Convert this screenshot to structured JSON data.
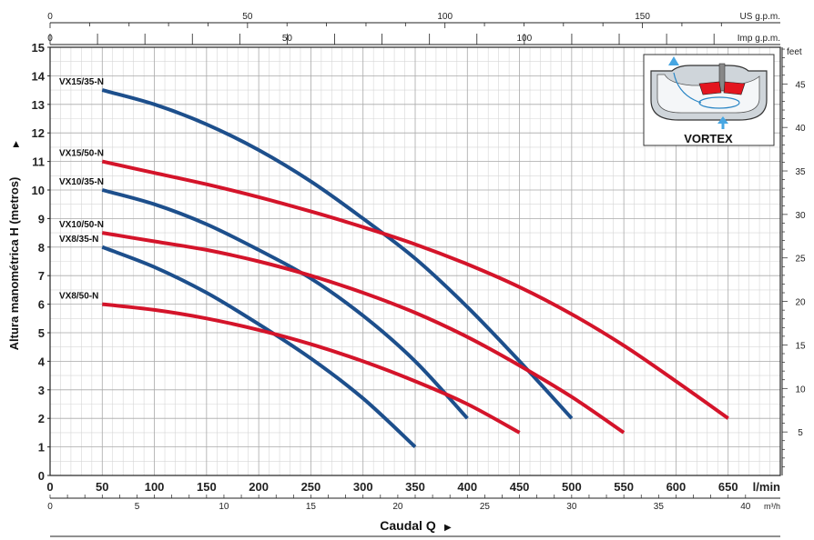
{
  "chart_data": {
    "type": "line",
    "x_unit": "l/min",
    "ylabel": "Altura manométrica H (metros)",
    "ylabel_arrow": "▶",
    "xlabel": "Caudal Q",
    "xlabel_arrow": "▶",
    "xlim": [
      0,
      700
    ],
    "ylim": [
      0,
      15
    ],
    "grid": true,
    "x_ticks": [
      50,
      100,
      150,
      200,
      250,
      300,
      350,
      400,
      450,
      500,
      550,
      600,
      650
    ],
    "y_ticks": [
      0,
      1,
      2,
      3,
      4,
      5,
      6,
      7,
      8,
      9,
      10,
      11,
      12,
      13,
      14,
      15
    ],
    "zero_label": "0",
    "top_axis_us": {
      "unit": "US g.p.m.",
      "ticks": [
        0,
        50,
        100,
        150
      ]
    },
    "top_axis_imp": {
      "unit": "Imp g.p.m.",
      "ticks": [
        0,
        50,
        100
      ]
    },
    "right_axis": {
      "unit": "feet",
      "ticks": [
        5,
        10,
        15,
        20,
        25,
        30,
        35,
        40,
        45
      ]
    },
    "bottom_axis_m3h": {
      "unit": "m³/h",
      "ticks": [
        0,
        5,
        10,
        15,
        20,
        25,
        30,
        35,
        40
      ]
    },
    "series": [
      {
        "name": "VX15/35-N",
        "color": "#1d4f8c",
        "x": [
          50,
          100,
          150,
          200,
          250,
          300,
          350,
          400,
          450,
          500
        ],
        "y": [
          13.5,
          13.0,
          12.3,
          11.4,
          10.3,
          9.0,
          7.6,
          5.9,
          4.0,
          2.0
        ]
      },
      {
        "name": "VX15/50-N",
        "color": "#d4142a",
        "x": [
          50,
          100,
          150,
          200,
          250,
          300,
          350,
          400,
          450,
          500,
          550,
          600,
          650
        ],
        "y": [
          11.0,
          10.6,
          10.2,
          9.75,
          9.25,
          8.7,
          8.1,
          7.4,
          6.6,
          5.65,
          4.55,
          3.3,
          2.0
        ]
      },
      {
        "name": "VX10/35-N",
        "color": "#1d4f8c",
        "x": [
          50,
          100,
          150,
          200,
          250,
          300,
          350,
          400
        ],
        "y": [
          10.0,
          9.5,
          8.8,
          7.9,
          6.9,
          5.6,
          4.0,
          2.0
        ]
      },
      {
        "name": "VX10/50-N",
        "color": "#d4142a",
        "x": [
          50,
          100,
          150,
          200,
          250,
          300,
          350,
          400,
          450,
          500,
          550
        ],
        "y": [
          8.5,
          8.2,
          7.9,
          7.5,
          7.0,
          6.4,
          5.7,
          4.85,
          3.85,
          2.75,
          1.5
        ]
      },
      {
        "name": "VX8/35-N",
        "color": "#1d4f8c",
        "x": [
          50,
          100,
          150,
          200,
          250,
          300,
          350
        ],
        "y": [
          8.0,
          7.3,
          6.4,
          5.3,
          4.1,
          2.7,
          1.0
        ]
      },
      {
        "name": "VX8/50-N",
        "color": "#d4142a",
        "x": [
          50,
          100,
          150,
          200,
          250,
          300,
          350,
          400,
          450
        ],
        "y": [
          6.0,
          5.8,
          5.5,
          5.1,
          4.6,
          4.0,
          3.3,
          2.5,
          1.5
        ]
      }
    ]
  },
  "inset": {
    "label": "VORTEX",
    "icon": "vortex-impeller-icon"
  }
}
